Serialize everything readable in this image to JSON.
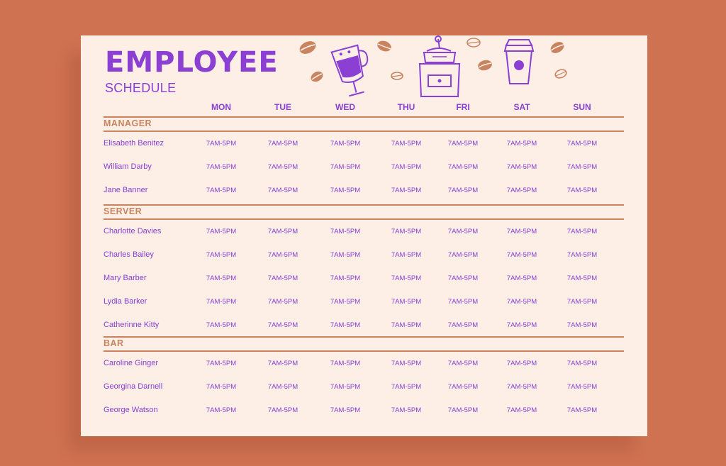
{
  "title": "EMPLOYEE",
  "subtitle": "SCHEDULE",
  "days": [
    "MON",
    "TUE",
    "WED",
    "THU",
    "FRI",
    "SAT",
    "SUN"
  ],
  "sections": [
    {
      "name": "MANAGER",
      "rows": [
        {
          "employee": "Elisabeth Benitez",
          "shifts": [
            "7AM-5PM",
            "7AM-5PM",
            "7AM-5PM",
            "7AM-5PM",
            "7AM-5PM",
            "7AM-5PM",
            "7AM-5PM"
          ]
        },
        {
          "employee": "William Darby",
          "shifts": [
            "7AM-5PM",
            "7AM-5PM",
            "7AM-5PM",
            "7AM-5PM",
            "7AM-5PM",
            "7AM-5PM",
            "7AM-5PM"
          ]
        },
        {
          "employee": "Jane Banner",
          "shifts": [
            "7AM-5PM",
            "7AM-5PM",
            "7AM-5PM",
            "7AM-5PM",
            "7AM-5PM",
            "7AM-5PM",
            "7AM-5PM"
          ]
        }
      ]
    },
    {
      "name": "SERVER",
      "rows": [
        {
          "employee": "Charlotte Davies",
          "shifts": [
            "7AM-5PM",
            "7AM-5PM",
            "7AM-5PM",
            "7AM-5PM",
            "7AM-5PM",
            "7AM-5PM",
            "7AM-5PM"
          ]
        },
        {
          "employee": "Charles Bailey",
          "shifts": [
            "7AM-5PM",
            "7AM-5PM",
            "7AM-5PM",
            "7AM-5PM",
            "7AM-5PM",
            "7AM-5PM",
            "7AM-5PM"
          ]
        },
        {
          "employee": "Mary Barber",
          "shifts": [
            "7AM-5PM",
            "7AM-5PM",
            "7AM-5PM",
            "7AM-5PM",
            "7AM-5PM",
            "7AM-5PM",
            "7AM-5PM"
          ]
        },
        {
          "employee": "Lydia Barker",
          "shifts": [
            "7AM-5PM",
            "7AM-5PM",
            "7AM-5PM",
            "7AM-5PM",
            "7AM-5PM",
            "7AM-5PM",
            "7AM-5PM"
          ]
        },
        {
          "employee": "Catherinne Kitty",
          "shifts": [
            "7AM-5PM",
            "7AM-5PM",
            "7AM-5PM",
            "7AM-5PM",
            "7AM-5PM",
            "7AM-5PM",
            "7AM-5PM"
          ]
        }
      ]
    },
    {
      "name": "BAR",
      "rows": [
        {
          "employee": "Caroline Ginger",
          "shifts": [
            "7AM-5PM",
            "7AM-5PM",
            "7AM-5PM",
            "7AM-5PM",
            "7AM-5PM",
            "7AM-5PM",
            "7AM-5PM"
          ]
        },
        {
          "employee": "Georgina Darnell",
          "shifts": [
            "7AM-5PM",
            "7AM-5PM",
            "7AM-5PM",
            "7AM-5PM",
            "7AM-5PM",
            "7AM-5PM",
            "7AM-5PM"
          ]
        },
        {
          "employee": "George Watson",
          "shifts": [
            "7AM-5PM",
            "7AM-5PM",
            "7AM-5PM",
            "7AM-5PM",
            "7AM-5PM",
            "7AM-5PM",
            "7AM-5PM"
          ]
        }
      ]
    }
  ],
  "colors": {
    "background": "#cf7251",
    "paper": "#fdeee6",
    "accent": "#8b3fd3",
    "rule": "#c9835f"
  },
  "decorations": [
    "coffee-bean-icon",
    "latte-glass-icon",
    "coffee-grinder-icon",
    "takeaway-cup-icon"
  ]
}
